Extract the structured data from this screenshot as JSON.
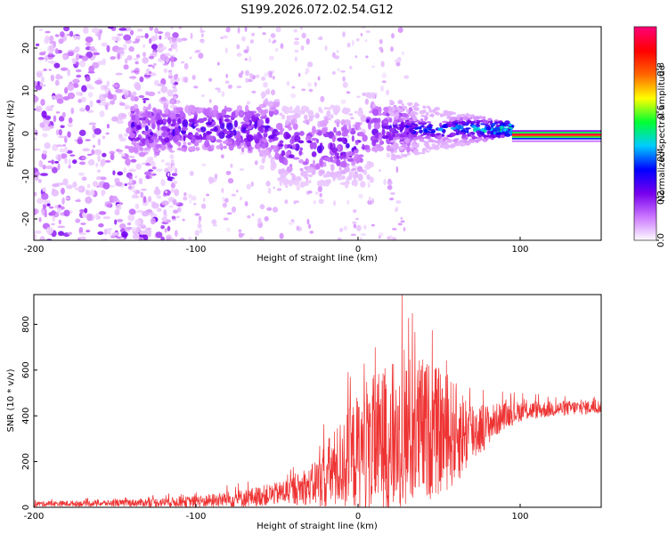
{
  "chart_data": [
    {
      "type": "heatmap",
      "title": "S199.2026.072.02.54.G12",
      "xlabel": "Height of straight line (km)",
      "ylabel": "Frequency (Hz)",
      "xlim": [
        -200,
        150
      ],
      "ylim": [
        -25,
        25
      ],
      "xticks": [
        -200,
        -100,
        0,
        100
      ],
      "yticks": [
        -20,
        -10,
        0,
        10,
        20
      ],
      "colorbar": {
        "label": "Normalized spectral amplitude",
        "range": [
          0,
          1
        ],
        "ticks": [
          "0.0",
          "0.2",
          "0.4",
          "0.6",
          "0.8"
        ],
        "tick_values": [
          0,
          0.2,
          0.4,
          0.6,
          0.8
        ],
        "colormap": [
          "#ffffff",
          "#cc77ff",
          "#7700ee",
          "#0000ff",
          "#00ccff",
          "#00ff33",
          "#ffff00",
          "#ff6600",
          "#ff0000",
          "#ff0077"
        ]
      },
      "features": [
        {
          "name": "scattered noise",
          "x_range": [
            -200,
            -120
          ],
          "y_range": [
            -25,
            25
          ],
          "amplitude": 0.08
        },
        {
          "name": "broadband band",
          "x_range": [
            -140,
            30
          ],
          "y_range": [
            -8,
            8
          ],
          "amplitude": 0.15
        },
        {
          "name": "narrowing tone",
          "x_range": [
            30,
            95
          ],
          "y_center": 1,
          "amplitude": 0.5
        },
        {
          "name": "steady tone",
          "x_range": [
            95,
            150
          ],
          "y_center": -1,
          "amplitude": 0.8
        }
      ]
    },
    {
      "type": "line",
      "title": "",
      "xlabel": "Height of straight line (km)",
      "ylabel": "SNR (10 * v/v)",
      "xlim": [
        -200,
        150
      ],
      "ylim": [
        0,
        930
      ],
      "xticks": [
        -200,
        -100,
        0,
        100
      ],
      "yticks": [
        0,
        200,
        400,
        600,
        800
      ],
      "series": [
        {
          "name": "SNR",
          "color": "#ee3333",
          "envelope": {
            "x": [
              -200,
              -150,
              -100,
              -70,
              -50,
              -30,
              -20,
              -10,
              0,
              10,
              20,
              30,
              40,
              50,
              60,
              70,
              80,
              90,
              100,
              120,
              150
            ],
            "mean": [
              15,
              18,
              25,
              40,
              60,
              90,
              140,
              190,
              240,
              280,
              300,
              320,
              340,
              330,
              320,
              330,
              360,
              400,
              420,
              430,
              440
            ],
            "amp": [
              12,
              14,
              25,
              40,
              50,
              80,
              150,
              200,
              260,
              300,
              330,
              350,
              320,
              280,
              230,
              150,
              90,
              60,
              45,
              35,
              30
            ]
          }
        }
      ]
    }
  ]
}
